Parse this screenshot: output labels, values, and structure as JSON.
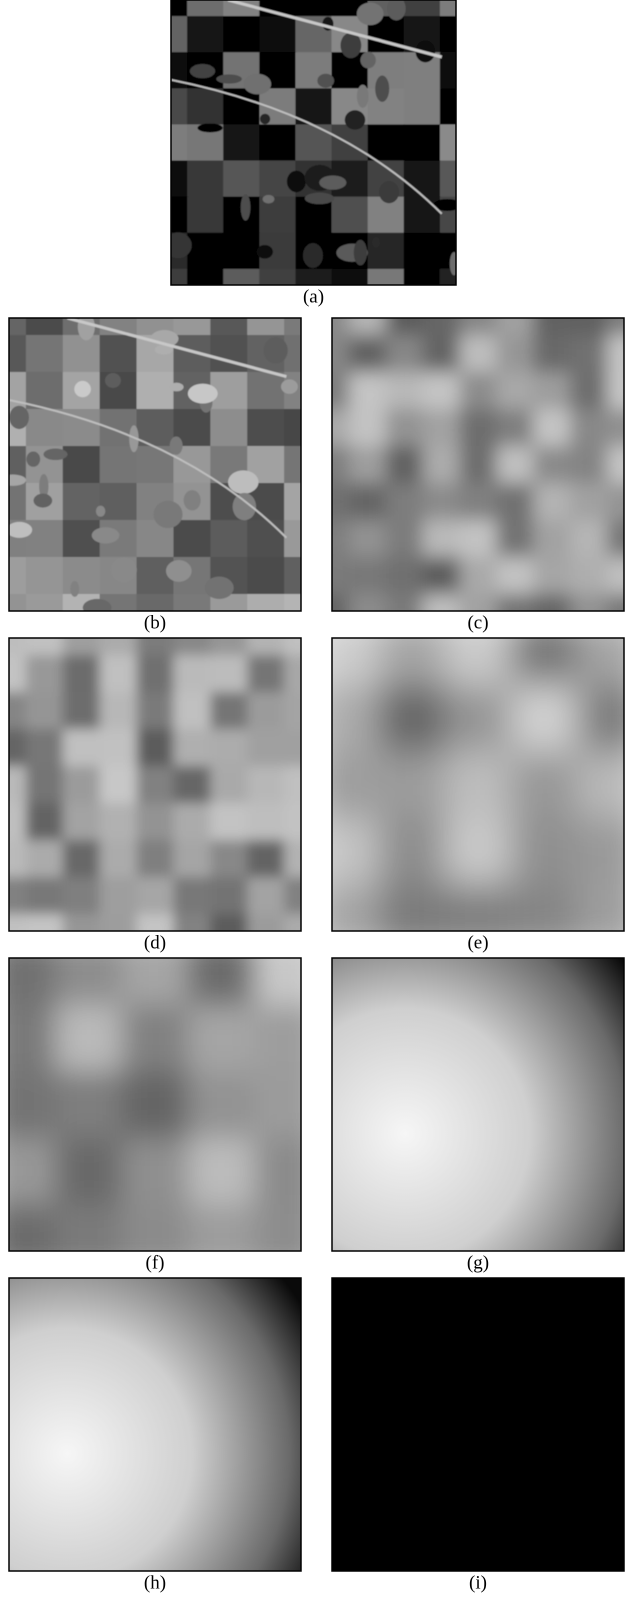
{
  "captions": [
    "(a)",
    "(b)",
    "(c)",
    "(d)",
    "(e)",
    "(f)",
    "(g)",
    "(h)",
    "(i)"
  ]
}
